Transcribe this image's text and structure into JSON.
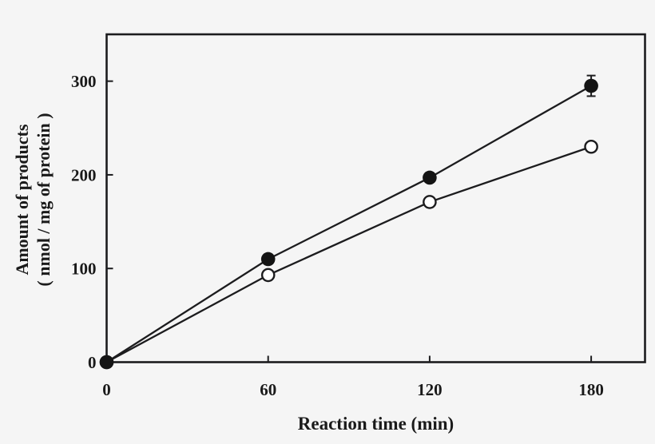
{
  "figure": {
    "background": "#f5f5f5"
  },
  "chart_data": {
    "type": "line",
    "title": "",
    "xlabel": "Reaction time (min)",
    "ylabel": [
      "Amount of products",
      "( nmol / mg of protein )"
    ],
    "x": [
      0,
      60,
      120,
      180
    ],
    "series": [
      {
        "name": "open circles",
        "marker": "open-circle",
        "values": [
          0,
          93,
          171,
          230
        ],
        "yerr": [
          0,
          0,
          0,
          0
        ]
      },
      {
        "name": "filled circles",
        "marker": "filled-circle",
        "values": [
          0,
          110,
          197,
          295
        ],
        "yerr": [
          0,
          0,
          0,
          11
        ]
      }
    ],
    "xlim": [
      0,
      200
    ],
    "ylim": [
      0,
      350
    ],
    "xticks": [
      0,
      60,
      120,
      180
    ],
    "yticks": [
      0,
      100,
      200,
      300
    ],
    "grid": false,
    "legend": "none",
    "colors": {
      "stroke": "#1c1c1e",
      "marker_fill": "#141414",
      "open_marker_fill": "#ffffff",
      "text": "#1a1a1a",
      "background": "#f5f5f5"
    }
  }
}
